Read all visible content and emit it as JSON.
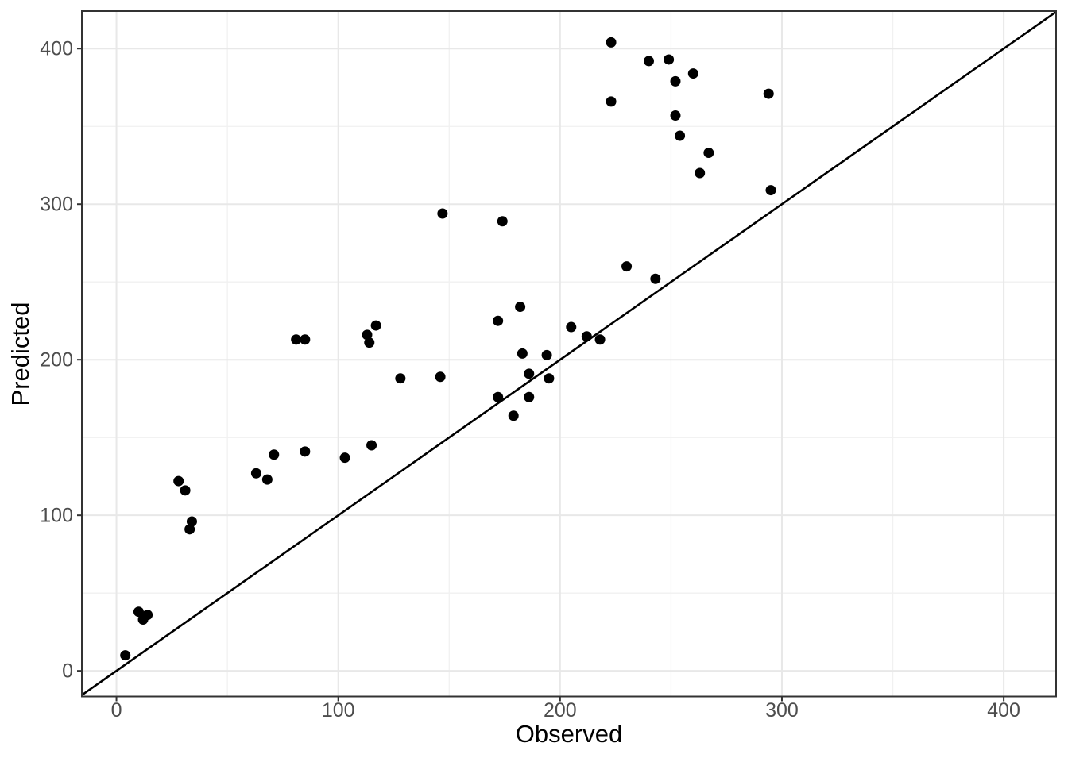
{
  "chart_data": {
    "type": "scatter",
    "title": "",
    "xlabel": "Observed",
    "ylabel": "Predicted",
    "x_ticks": [
      0,
      100,
      200,
      300,
      400
    ],
    "y_ticks": [
      0,
      100,
      200,
      300,
      400
    ],
    "x_minor_ticks": [
      50,
      150,
      250,
      350
    ],
    "y_minor_ticks": [
      50,
      150,
      250,
      350
    ],
    "xlim": [
      -15.6,
      423.6
    ],
    "ylim": [
      -16.5,
      424.1
    ],
    "grid": "major+minor",
    "legend": "none",
    "identity_line": {
      "slope": 1,
      "intercept": 0
    },
    "points": [
      [
        4,
        10
      ],
      [
        10,
        38
      ],
      [
        12,
        33
      ],
      [
        14,
        36
      ],
      [
        28,
        122
      ],
      [
        31,
        116
      ],
      [
        34,
        96
      ],
      [
        33,
        91
      ],
      [
        63,
        127
      ],
      [
        68,
        123
      ],
      [
        71,
        139
      ],
      [
        81,
        213
      ],
      [
        85,
        213
      ],
      [
        85,
        141
      ],
      [
        103,
        137
      ],
      [
        113,
        216
      ],
      [
        114,
        211
      ],
      [
        117,
        222
      ],
      [
        115,
        145
      ],
      [
        128,
        188
      ],
      [
        146,
        189
      ],
      [
        147,
        294
      ],
      [
        172,
        225
      ],
      [
        174,
        289
      ],
      [
        172,
        176
      ],
      [
        179,
        164
      ],
      [
        182,
        234
      ],
      [
        183,
        204
      ],
      [
        186,
        191
      ],
      [
        186,
        176
      ],
      [
        194,
        203
      ],
      [
        195,
        188
      ],
      [
        205,
        221
      ],
      [
        212,
        215
      ],
      [
        218,
        213
      ],
      [
        223,
        404
      ],
      [
        223,
        366
      ],
      [
        230,
        260
      ],
      [
        240,
        392
      ],
      [
        243,
        252
      ],
      [
        249,
        393
      ],
      [
        252,
        379
      ],
      [
        252,
        357
      ],
      [
        254,
        344
      ],
      [
        260,
        384
      ],
      [
        263,
        320
      ],
      [
        267,
        333
      ],
      [
        294,
        371
      ],
      [
        295,
        309
      ]
    ],
    "colors": {
      "point": "#000000",
      "identity_line": "#000000",
      "grid_major": "#e8e8e8",
      "grid_minor": "#f1f1f1",
      "panel_border": "#333333",
      "tick_mark": "#333333",
      "tick_label": "#4d4d4d",
      "axis_title": "#000000",
      "panel_background": "#ffffff"
    }
  }
}
